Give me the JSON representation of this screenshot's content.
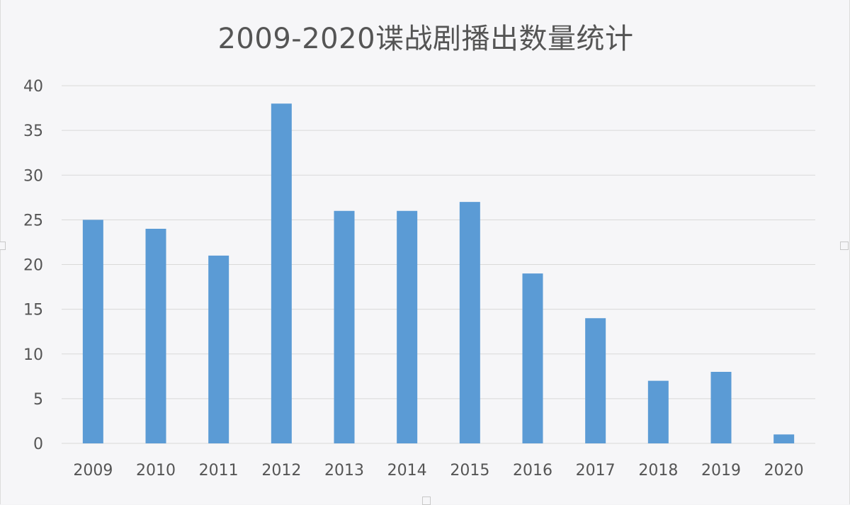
{
  "chart_data": {
    "type": "bar",
    "title": "2009-2020谍战剧播出数量统计",
    "xlabel": "",
    "ylabel": "",
    "categories": [
      "2009",
      "2010",
      "2011",
      "2012",
      "2013",
      "2014",
      "2015",
      "2016",
      "2017",
      "2018",
      "2019",
      "2020"
    ],
    "values": [
      25,
      24,
      21,
      38,
      26,
      26,
      27,
      19,
      14,
      7,
      8,
      1
    ],
    "ylim": [
      0,
      40
    ],
    "yticks": [
      0,
      5,
      10,
      15,
      20,
      25,
      30,
      35,
      40
    ],
    "grid": true,
    "legend": "none",
    "colors": {
      "bar": "#5b9bd5",
      "grid": "#d9d9d9",
      "text": "#555555"
    }
  }
}
